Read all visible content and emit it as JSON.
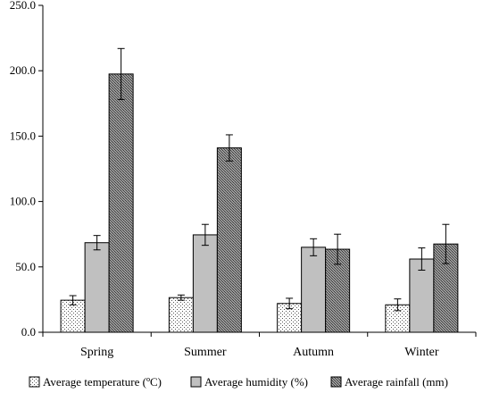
{
  "chart_data": {
    "type": "bar",
    "categories": [
      "Spring",
      "Summer",
      "Autumn",
      "Winter"
    ],
    "series": [
      {
        "name": "Average temperature (ºC)",
        "values": [
          24.5,
          26.5,
          22.0,
          21.0
        ],
        "errors": [
          3.5,
          2.0,
          4.0,
          4.5
        ],
        "pattern": "dots",
        "color": "#f2f2f2"
      },
      {
        "name": "Average humidity (%)",
        "values": [
          68.5,
          74.5,
          65.0,
          56.0
        ],
        "errors": [
          5.5,
          8.0,
          6.5,
          8.5
        ],
        "pattern": "solid",
        "color": "#c0c0c0"
      },
      {
        "name": "Average rainfall (mm)",
        "values": [
          197.5,
          141.0,
          63.5,
          67.5
        ],
        "errors": [
          19.5,
          10.0,
          11.5,
          15.0
        ],
        "pattern": "crosshatch",
        "color": "#808080"
      }
    ],
    "ylim": [
      0,
      250
    ],
    "yticks": [
      "0.0",
      "50.0",
      "100.0",
      "150.0",
      "200.0",
      "250.0"
    ],
    "ytick_values": [
      0,
      50,
      100,
      150,
      200,
      250
    ],
    "grid": false,
    "legend_position": "bottom"
  }
}
